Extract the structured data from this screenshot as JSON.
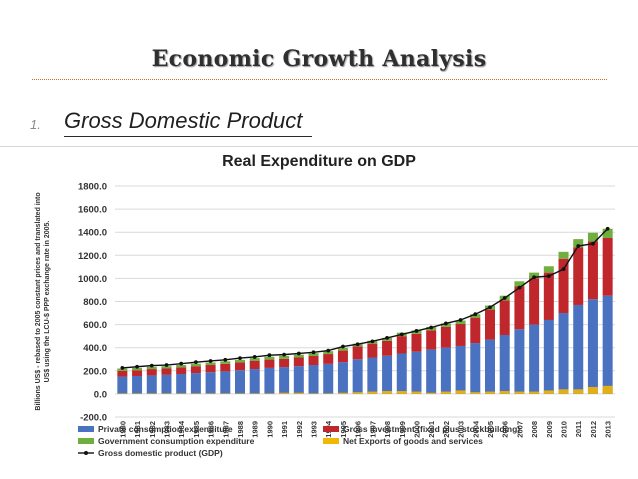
{
  "slide": {
    "title": "Economic Growth Analysis",
    "bullet_number": "1.",
    "bullet_text": "Gross Domestic Product"
  },
  "colors": {
    "private": "#4a72c0",
    "investment": "#c0272d",
    "government": "#6fae3f",
    "net_exports": "#f2b705",
    "gdp_line": "#111111",
    "grid": "#d9d9d9"
  },
  "chart_data": {
    "type": "bar",
    "stacked": true,
    "title": "Real Expenditure on GDP",
    "ylabel_lines": [
      "Billions US$ - rebased to 2005 constant prices and translated into",
      "US$ using the LCU-$ PPP exchange rate in 2005."
    ],
    "xlabel": "",
    "ylim": [
      -200,
      1800
    ],
    "ytick_values": [
      -200,
      0,
      200,
      400,
      600,
      800,
      1000,
      1200,
      1400,
      1600,
      1800
    ],
    "ytick_labels": [
      "-200.0",
      "0.0",
      "200.0",
      "400.0",
      "600.0",
      "800.0",
      "1000.0",
      "1200.0",
      "1400.0",
      "1600.0",
      "1800.0"
    ],
    "grid": true,
    "categories": [
      "1980",
      "1981",
      "1982",
      "1983",
      "1984",
      "1985",
      "1986",
      "1987",
      "1988",
      "1989",
      "1990",
      "1991",
      "1992",
      "1993",
      "1994",
      "1995",
      "1996",
      "1997",
      "1998",
      "1999",
      "2000",
      "2001",
      "2002",
      "2003",
      "2004",
      "2005",
      "2006",
      "2007",
      "2008",
      "2009",
      "2010",
      "2011",
      "2012",
      "2013"
    ],
    "series": [
      {
        "name": "Private consumption expenditure",
        "kind": "bar",
        "values": [
          150,
          155,
          160,
          165,
          172,
          180,
          188,
          195,
          205,
          215,
          225,
          232,
          240,
          250,
          260,
          275,
          300,
          315,
          330,
          350,
          365,
          385,
          400,
          415,
          440,
          470,
          510,
          560,
          600,
          640,
          700,
          770,
          820,
          850
        ]
      },
      {
        "name": "Gross investment (fixed plus stockbuilding)",
        "kind": "bar",
        "values": [
          50,
          50,
          55,
          55,
          58,
          60,
          62,
          65,
          68,
          70,
          72,
          72,
          75,
          78,
          85,
          100,
          110,
          120,
          130,
          150,
          155,
          165,
          180,
          190,
          220,
          260,
          300,
          370,
          400,
          410,
          470,
          500,
          500,
          500
        ]
      },
      {
        "name": "Government consumption expenditure",
        "kind": "bar",
        "values": [
          20,
          20,
          20,
          20,
          20,
          22,
          22,
          22,
          22,
          25,
          25,
          25,
          25,
          25,
          25,
          25,
          25,
          25,
          25,
          30,
          30,
          30,
          30,
          30,
          30,
          35,
          40,
          45,
          50,
          55,
          60,
          70,
          75,
          80
        ]
      },
      {
        "name": "Net Exports of goods and services",
        "kind": "bar",
        "values": [
          5,
          5,
          5,
          5,
          5,
          5,
          5,
          5,
          5,
          5,
          5,
          10,
          10,
          5,
          5,
          10,
          15,
          20,
          25,
          25,
          20,
          10,
          20,
          30,
          15,
          20,
          25,
          20,
          20,
          30,
          40,
          40,
          60,
          70
        ]
      },
      {
        "name": "Gross domestic product (GDP)",
        "kind": "line",
        "values": [
          225,
          235,
          245,
          250,
          262,
          275,
          285,
          295,
          310,
          320,
          335,
          340,
          350,
          360,
          375,
          410,
          430,
          455,
          485,
          515,
          545,
          575,
          610,
          640,
          690,
          750,
          830,
          920,
          1010,
          1020,
          1080,
          1280,
          1300,
          1430
        ]
      }
    ],
    "legend": {
      "placement": "bottom",
      "entries": [
        "Private consumption expenditure",
        "Gross investment (fixed plus stockbuilding)",
        "Government consumption expenditure",
        "Net Exports of goods and services",
        "Gross domestic product (GDP)"
      ]
    }
  }
}
